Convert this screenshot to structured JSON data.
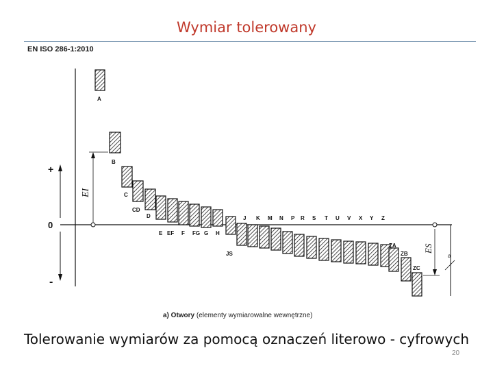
{
  "slide": {
    "title": "Wymiar tolerowany",
    "standard": "EN ISO 286-1:2010",
    "subtitle": "Tolerowanie wymiarów za pomocą oznaczeń literowo - cyfrowych",
    "page_number": "20"
  },
  "diagram": {
    "plus_sign": "+",
    "zero_label": "0",
    "minus_sign": "-",
    "ei_label": "EI",
    "es_label": "ES",
    "a_label": "a",
    "caption_bold": "a) Otwory",
    "caption_rest": " (elementy wymiarowalne wewnętrzne)",
    "bars_above": [
      {
        "label": "A"
      },
      {
        "label": "B"
      },
      {
        "label": "C"
      },
      {
        "label": "CD"
      },
      {
        "label": "D"
      },
      {
        "label": "E"
      },
      {
        "label": "EF"
      },
      {
        "label": "F"
      },
      {
        "label": "FG"
      },
      {
        "label": "G"
      },
      {
        "label": "H"
      }
    ],
    "js_label": "JS",
    "bars_below": [
      {
        "label": "J"
      },
      {
        "label": "K"
      },
      {
        "label": "M"
      },
      {
        "label": "N"
      },
      {
        "label": "P"
      },
      {
        "label": "R"
      },
      {
        "label": "S"
      },
      {
        "label": "T"
      },
      {
        "label": "U"
      },
      {
        "label": "V"
      },
      {
        "label": "X"
      },
      {
        "label": "Y"
      },
      {
        "label": "Z"
      },
      {
        "label": "ZA"
      },
      {
        "label": "ZB"
      },
      {
        "label": "ZC"
      }
    ]
  }
}
